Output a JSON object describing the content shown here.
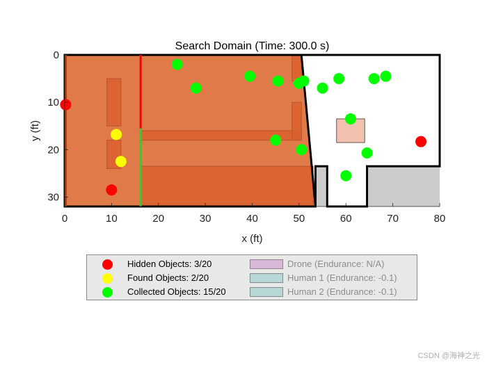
{
  "chart_data": {
    "type": "scatter",
    "title": "Search Domain (Time: 300.0 s)",
    "xlabel": "x (ft)",
    "ylabel": "y (ft)",
    "xlim": [
      0,
      80
    ],
    "ylim": [
      32,
      0
    ],
    "y_reversed": true,
    "xticks": [
      0,
      10,
      20,
      30,
      40,
      50,
      60,
      70,
      80
    ],
    "yticks": [
      0,
      10,
      20,
      30
    ],
    "grid": false,
    "legend_position": "bottom-outside",
    "boundary_polygon": [
      [
        0,
        0
      ],
      [
        80,
        0
      ],
      [
        80,
        23.5
      ],
      [
        64.5,
        23.5
      ],
      [
        64.5,
        32
      ],
      [
        56,
        32
      ],
      [
        56,
        23.5
      ],
      [
        53.5,
        23.5
      ],
      [
        53.5,
        32
      ],
      [
        0,
        32
      ]
    ],
    "searched_region": [
      [
        0,
        0
      ],
      [
        50.5,
        0
      ],
      [
        53.5,
        32
      ],
      [
        0,
        32
      ]
    ],
    "walls": [
      {
        "from": [
          16.2,
          0
        ],
        "to": [
          16.2,
          15.5
        ],
        "color": "#ff0000"
      },
      {
        "from": [
          16.2,
          15.5
        ],
        "to": [
          16.2,
          32
        ],
        "color": "#33cc33"
      }
    ],
    "obstacles": [
      {
        "x": [
          9,
          12
        ],
        "y": [
          5,
          15
        ]
      },
      {
        "x": [
          9,
          12
        ],
        "y": [
          18,
          24
        ]
      },
      {
        "x": [
          16.2,
          50.5
        ],
        "y": [
          16,
          18
        ]
      },
      {
        "x": [
          48.5,
          50.5
        ],
        "y": [
          10,
          18
        ]
      },
      {
        "x": [
          48.5,
          50.5
        ],
        "y": [
          0,
          5.5
        ]
      },
      {
        "x": [
          16.2,
          53
        ],
        "y": [
          23.5,
          32
        ]
      }
    ],
    "structure": {
      "x": [
        58,
        64
      ],
      "y": [
        13.5,
        18.5
      ],
      "color": "#f2c2b0"
    },
    "series": [
      {
        "name": "Hidden Objects: 3/20",
        "color": "#ff0000",
        "points": [
          [
            0.2,
            10.5
          ],
          [
            10,
            28.5
          ],
          [
            76,
            18.3
          ]
        ]
      },
      {
        "name": "Found Objects: 2/20",
        "color": "#ffff00",
        "points": [
          [
            11,
            16.8
          ],
          [
            12,
            22.5
          ]
        ]
      },
      {
        "name": "Collected Objects: 15/20",
        "color": "#00ff00",
        "points": [
          [
            24,
            2
          ],
          [
            28,
            7
          ],
          [
            39.5,
            4.5
          ],
          [
            45.5,
            5.5
          ],
          [
            50,
            6
          ],
          [
            51,
            5.5
          ],
          [
            55,
            7
          ],
          [
            58.5,
            5
          ],
          [
            61,
            13.5
          ],
          [
            66,
            5
          ],
          [
            68.5,
            4.5
          ],
          [
            45,
            18
          ],
          [
            50.5,
            20
          ],
          [
            60,
            25.5
          ],
          [
            64.5,
            20.7
          ]
        ]
      }
    ],
    "regions_legend": [
      {
        "name": "Drone (Endurance: N/A)",
        "color": "#d8b8d8"
      },
      {
        "name": "Human 1 (Endurance: -0.1)",
        "color": "#b8d8d8"
      },
      {
        "name": "Human 2 (Endurance: -0.1)",
        "color": "#b8d8d8"
      }
    ]
  },
  "legend": {
    "hidden": "Hidden Objects: 3/20",
    "found": "Found Objects: 2/20",
    "collected": "Collected Objects: 15/20",
    "drone": "Drone (Endurance: N/A)",
    "human1": "Human 1 (Endurance: -0.1)",
    "human2": "Human 2 (Endurance: -0.1)"
  },
  "colors": {
    "hidden": "#ff0000",
    "found": "#ffff00",
    "collected": "#00ff00",
    "drone": "#d8b8d8",
    "human": "#b8d8d8"
  },
  "watermark": "CSDN @海神之光"
}
